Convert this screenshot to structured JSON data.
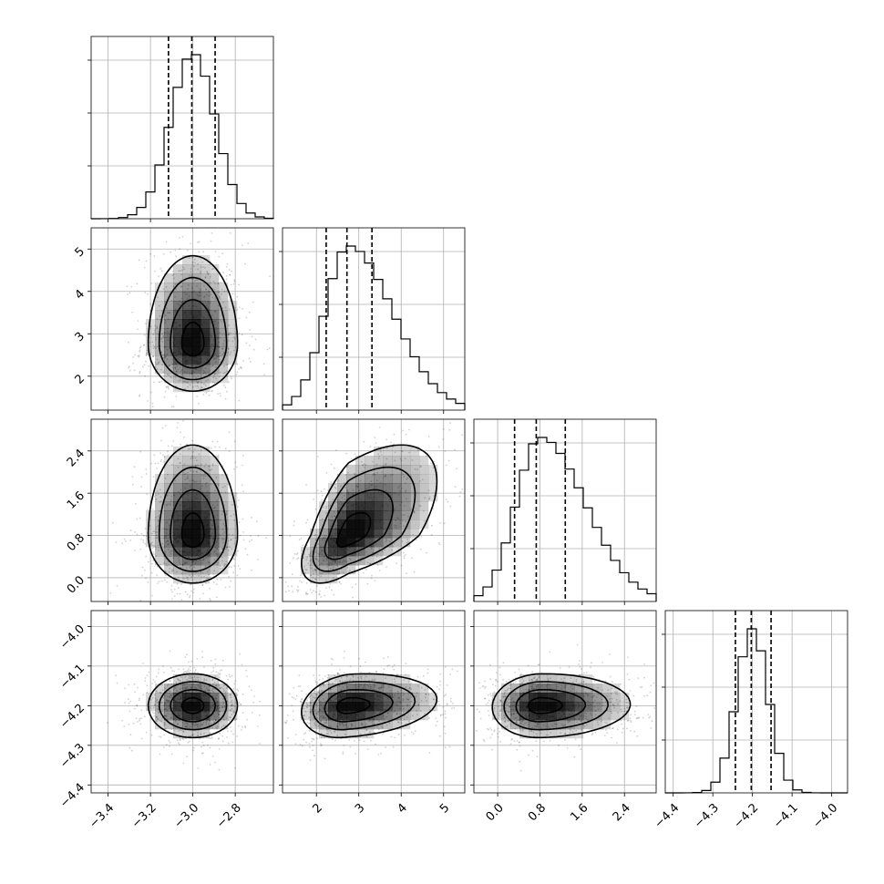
{
  "chart_data": {
    "type": "corner",
    "title": "",
    "params": [
      {
        "ticks": [
          -3.4,
          -3.2,
          -3.0,
          -2.8
        ],
        "range": [
          -3.48,
          -2.62
        ],
        "mean": -3.0,
        "sd": 0.105,
        "q": [
          -3.115,
          -3.005,
          -2.895
        ],
        "skew": 0
      },
      {
        "ticks": [
          2,
          3,
          4,
          5
        ],
        "range": [
          1.2,
          5.5
        ],
        "mean": 2.75,
        "sd": 0.55,
        "q": [
          2.23,
          2.72,
          3.31
        ],
        "skew": 0.9
      },
      {
        "ticks": [
          0.0,
          0.8,
          1.6,
          2.4
        ],
        "range": [
          -0.45,
          3.0
        ],
        "mean": 0.8,
        "sd": 0.45,
        "q": [
          0.32,
          0.73,
          1.28
        ],
        "skew": 0.9
      },
      {
        "ticks": [
          -4.4,
          -4.3,
          -4.2,
          -4.1,
          -4.0
        ],
        "range": [
          -4.42,
          -3.96
        ],
        "mean": -4.2,
        "sd": 0.04,
        "q": [
          -4.243,
          -4.203,
          -4.153
        ],
        "skew": 0
      }
    ],
    "tick_labels": [
      [
        "−3.4",
        "−3.2",
        "−3.0",
        "−2.8"
      ],
      [
        "2",
        "3",
        "4",
        "5"
      ],
      [
        "0.0",
        "0.8",
        "1.6",
        "2.4"
      ],
      [
        "−4.4",
        "−4.3",
        "−4.2",
        "−4.1",
        "−4.0"
      ]
    ],
    "correlation": [
      [
        1,
        0,
        0,
        0
      ],
      [
        0,
        1,
        0.6,
        0.2
      ],
      [
        0,
        0.6,
        1,
        0.05
      ],
      [
        0,
        0.2,
        0.05,
        1
      ]
    ],
    "hist_bins": 20,
    "quantiles": [
      0.16,
      0.5,
      0.84
    ],
    "contour_levels": 4,
    "grid": true,
    "legend": "none"
  }
}
